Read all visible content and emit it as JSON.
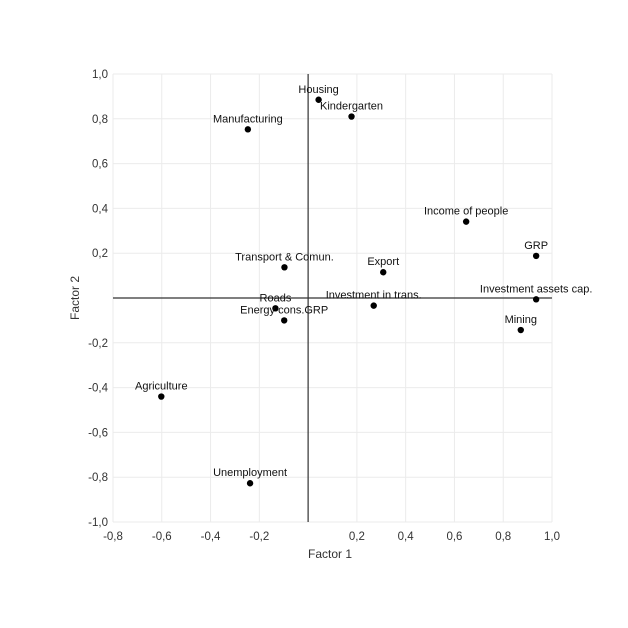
{
  "chart_data": {
    "type": "scatter",
    "title": "",
    "xlabel": "Factor 1",
    "ylabel": "Factor 2",
    "xlim": [
      -0.8,
      1.0
    ],
    "ylim": [
      -1.0,
      1.0
    ],
    "grid": true,
    "x_ticks": [
      "-0,8",
      "-0,6",
      "-0,4",
      "-0,2",
      "0,2",
      "0,4",
      "0,6",
      "0,8",
      "1,0"
    ],
    "x_tick_values": [
      -0.8,
      -0.6,
      -0.4,
      -0.2,
      0.2,
      0.4,
      0.6,
      0.8,
      1.0
    ],
    "y_ticks": [
      "1,0",
      "0,8",
      "0,6",
      "0,4",
      "0,2",
      "-0,2",
      "-0,4",
      "-0,6",
      "-0,8",
      "-1,0"
    ],
    "y_tick_values": [
      1.0,
      0.8,
      0.6,
      0.4,
      0.2,
      -0.2,
      -0.4,
      -0.6,
      -0.8,
      -1.0
    ],
    "points": [
      {
        "label": "Housing",
        "x": 0.043,
        "y": 0.885
      },
      {
        "label": "Kindergarten",
        "x": 0.178,
        "y": 0.81
      },
      {
        "label": "Manufacturing",
        "x": -0.247,
        "y": 0.753
      },
      {
        "label": "Income of people",
        "x": 0.648,
        "y": 0.341
      },
      {
        "label": "GRP",
        "x": 0.935,
        "y": 0.188
      },
      {
        "label": "Transport & Comun.",
        "x": -0.097,
        "y": 0.137
      },
      {
        "label": "Export",
        "x": 0.308,
        "y": 0.115
      },
      {
        "label": "Investment assets cap.",
        "x": 0.935,
        "y": -0.006
      },
      {
        "label": "Investment in trans.",
        "x": 0.269,
        "y": -0.034
      },
      {
        "label": "Roads",
        "x": -0.134,
        "y": -0.046
      },
      {
        "label": "Energy cons.GRP",
        "x": -0.098,
        "y": -0.1
      },
      {
        "label": "Mining",
        "x": 0.872,
        "y": -0.143
      },
      {
        "label": "Agriculture",
        "x": -0.602,
        "y": -0.44
      },
      {
        "label": "Unemployment",
        "x": -0.238,
        "y": -0.827
      }
    ]
  }
}
